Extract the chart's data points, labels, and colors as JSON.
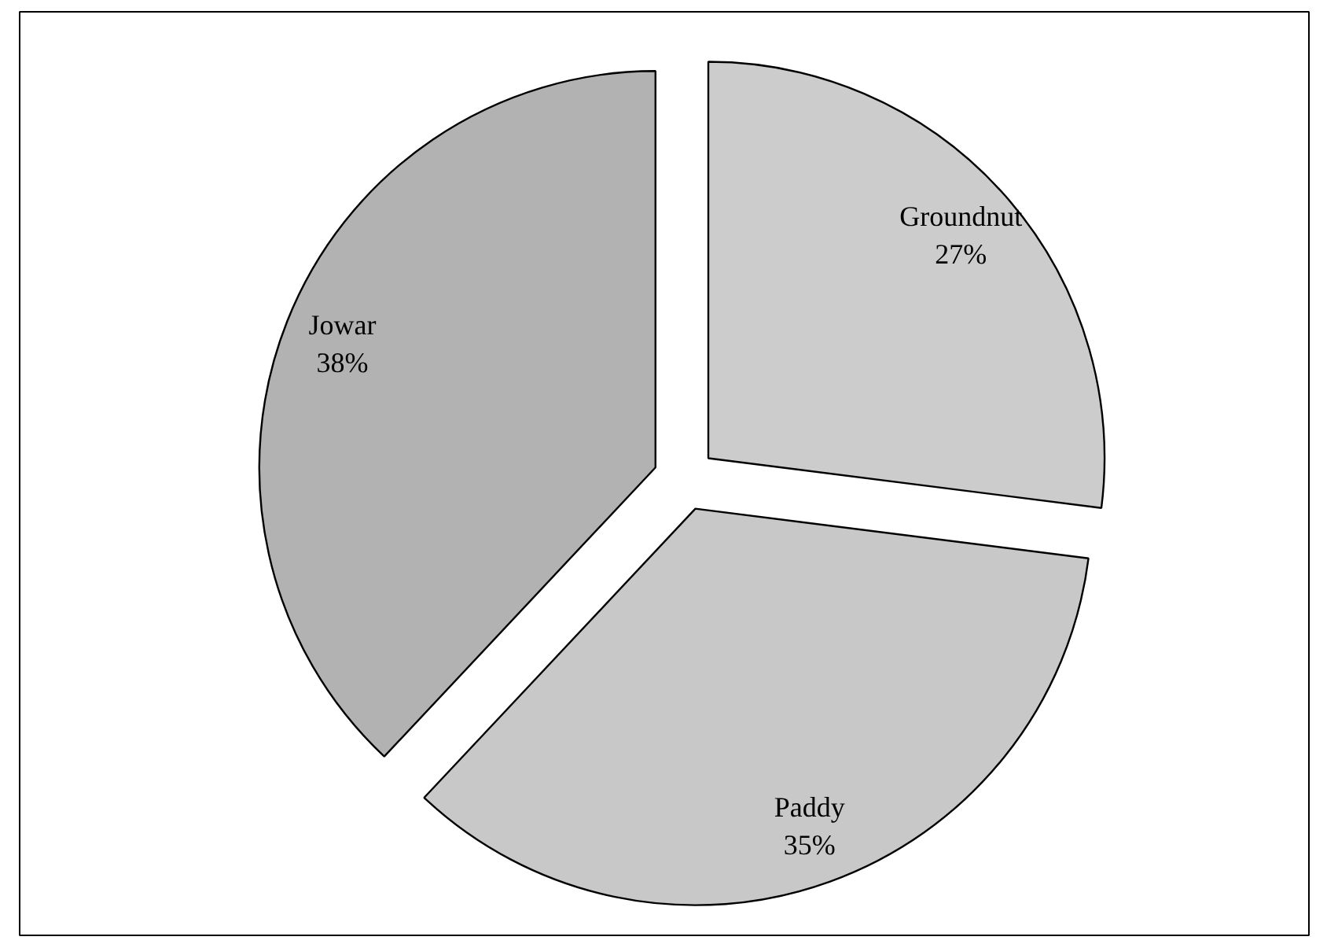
{
  "chart_data": {
    "type": "pie",
    "categories": [
      "Groundnut",
      "Paddy",
      "Jowar"
    ],
    "values": [
      27,
      35,
      38
    ],
    "colors": [
      "#cccccc",
      "#c8c8c8",
      "#b2b2b2"
    ],
    "value_labels": [
      "27%",
      "35%",
      "38%"
    ]
  }
}
